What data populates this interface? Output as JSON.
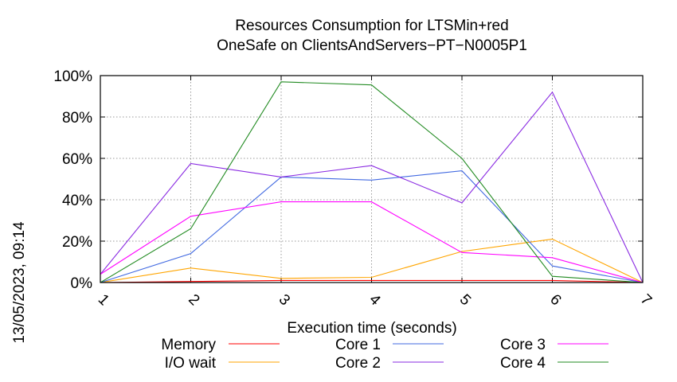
{
  "side_label": "13/05/2023, 09:14",
  "chart_data": {
    "type": "line",
    "title": [
      "Resources Consumption for LTSMin+red",
      "OneSafe on ClientsAndServers−PT−N0005P1"
    ],
    "xlabel": "Execution time (seconds)",
    "ylabel": "",
    "xlim": [
      1,
      7
    ],
    "ylim": [
      0,
      100
    ],
    "x_ticks": [
      "1",
      "2",
      "3",
      "4",
      "5",
      "6",
      "7"
    ],
    "y_ticks": [
      "0%",
      "20%",
      "40%",
      "60%",
      "80%",
      "100%"
    ],
    "y_tick_values": [
      0,
      20,
      40,
      60,
      80,
      100
    ],
    "grid": true,
    "legend_position": "bottom",
    "x": [
      1,
      2,
      3,
      4,
      5,
      6,
      7
    ],
    "series": [
      {
        "name": "Memory",
        "color": "#ff0000",
        "values": [
          0,
          0.5,
          1,
          1,
          1,
          1,
          0
        ]
      },
      {
        "name": "I/O wait",
        "color": "#ffa500",
        "values": [
          0,
          7,
          2,
          2.5,
          15,
          21,
          0
        ]
      },
      {
        "name": "Core 1",
        "color": "#4169e1",
        "values": [
          0,
          14,
          51,
          49.5,
          54,
          8,
          0
        ]
      },
      {
        "name": "Core 2",
        "color": "#8a2be2",
        "values": [
          4,
          57.5,
          51,
          56.5,
          38.5,
          92,
          0
        ]
      },
      {
        "name": "Core 3",
        "color": "#ff00ff",
        "values": [
          4,
          32,
          39,
          39,
          14.5,
          12,
          0
        ]
      },
      {
        "name": "Core 4",
        "color": "#228b22",
        "values": [
          0,
          26,
          97,
          95.5,
          60,
          3,
          0
        ]
      }
    ]
  }
}
